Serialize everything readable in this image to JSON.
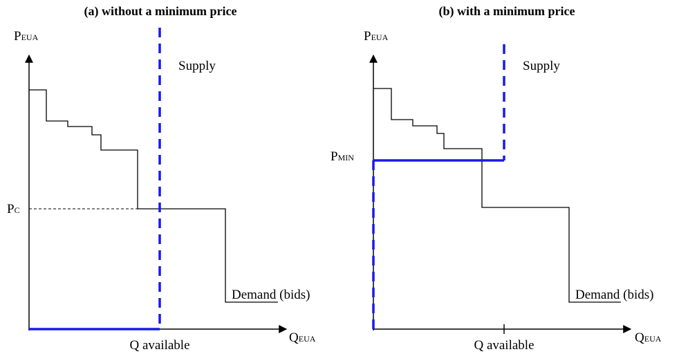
{
  "panels": [
    {
      "title": "(a) without a minimum price",
      "y_axis": {
        "main": "P",
        "sub": "EUA"
      },
      "x_axis": {
        "main": "Q",
        "sub": "EUA"
      },
      "price_label": {
        "main": "P",
        "sub": "C"
      },
      "supply_label": "Supply",
      "demand_label": "Demand (bids)",
      "quantity_label": "Q available"
    },
    {
      "title": "(b) with a minimum price",
      "y_axis": {
        "main": "P",
        "sub": "EUA"
      },
      "x_axis": {
        "main": "Q",
        "sub": "EUA"
      },
      "price_label": {
        "main": "P",
        "sub": "MIN"
      },
      "supply_label": "Supply",
      "demand_label": "Demand (bids)",
      "quantity_label": "Q available"
    }
  ]
}
